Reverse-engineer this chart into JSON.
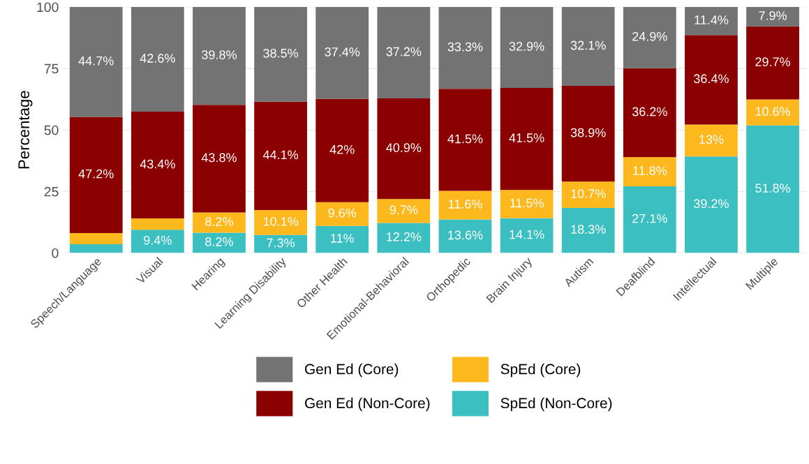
{
  "chart_data": {
    "type": "bar",
    "stacked": true,
    "ylabel": "Percentage",
    "categories": [
      "Speech/Language",
      "Visual",
      "Hearing",
      "Learning Disability",
      "Other Health",
      "Emotional-Behavioral",
      "Orthopedic",
      "Brain Injury",
      "Autism",
      "Deafblind",
      "Intellectual",
      "Multiple"
    ],
    "series": [
      {
        "name": "SpEd (Non-Core)",
        "color": "#3bbfc1",
        "values": [
          3.5,
          9.4,
          8.2,
          7.3,
          11,
          12.2,
          13.6,
          14.1,
          18.3,
          27.1,
          39.2,
          51.8
        ],
        "value_labels": [
          null,
          "9.4%",
          "8.2%",
          "7.3%",
          "11%",
          "12.2%",
          "13.6%",
          "14.1%",
          "18.3%",
          "27.1%",
          "39.2%",
          "51.8%"
        ]
      },
      {
        "name": "SpEd (Core)",
        "color": "#fdb81e",
        "values": [
          4.6,
          4.6,
          8.2,
          10.1,
          9.6,
          9.7,
          11.6,
          11.5,
          10.7,
          11.8,
          13,
          10.6
        ],
        "value_labels": [
          null,
          null,
          "8.2%",
          "10.1%",
          "9.6%",
          "9.7%",
          "11.6%",
          "11.5%",
          "10.7%",
          "11.8%",
          "13%",
          "10.6%"
        ]
      },
      {
        "name": "Gen Ed (Non-Core)",
        "color": "#8b0000",
        "values": [
          47.2,
          43.4,
          43.8,
          44.1,
          42,
          40.9,
          41.5,
          41.5,
          38.9,
          36.2,
          36.4,
          29.7
        ],
        "value_labels": [
          "47.2%",
          "43.4%",
          "43.8%",
          "44.1%",
          "42%",
          "40.9%",
          "41.5%",
          "41.5%",
          "38.9%",
          "36.2%",
          "36.4%",
          "29.7%"
        ]
      },
      {
        "name": "Gen Ed (Core)",
        "color": "#737373",
        "values": [
          44.7,
          42.6,
          39.8,
          38.5,
          37.4,
          37.2,
          33.3,
          32.9,
          32.1,
          24.9,
          11.4,
          7.9
        ],
        "value_labels": [
          "44.7%",
          "42.6%",
          "39.8%",
          "38.5%",
          "37.4%",
          "37.2%",
          "33.3%",
          "32.9%",
          "32.1%",
          "24.9%",
          "11.4%",
          "7.9%"
        ]
      }
    ],
    "ylim": [
      0,
      100
    ],
    "yticks": [
      0,
      25,
      50,
      75,
      100
    ],
    "grid": true,
    "legend": "bottom"
  }
}
